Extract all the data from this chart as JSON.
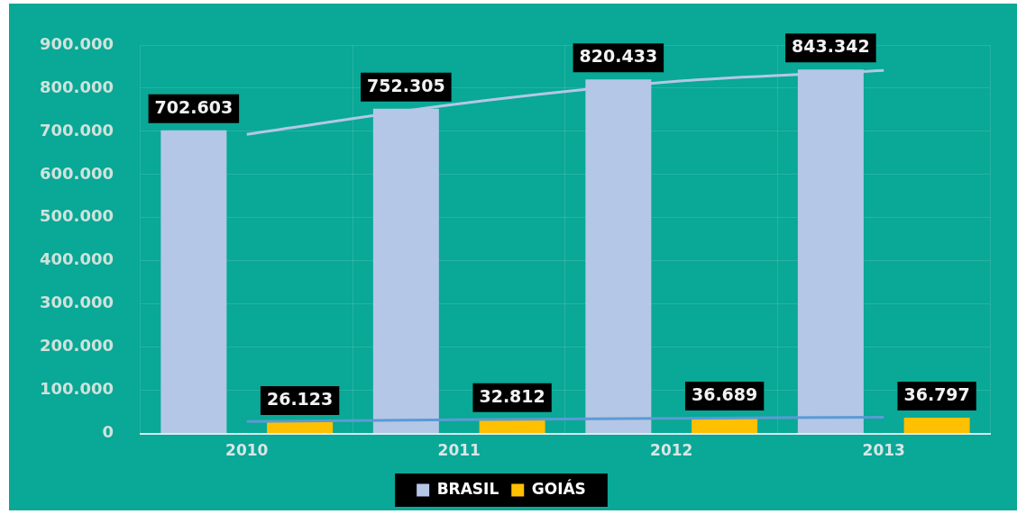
{
  "chart_data": {
    "type": "bar",
    "categories": [
      "2010",
      "2011",
      "2012",
      "2013"
    ],
    "series": [
      {
        "name": "BRASIL",
        "color": "#b4c7e7",
        "values": [
          702603,
          752305,
          820433,
          843342
        ],
        "value_labels": [
          "702.603",
          "752.305",
          "820.433",
          "843.342"
        ]
      },
      {
        "name": "GOIÁS",
        "color": "#ffc000",
        "values": [
          26123,
          32812,
          36689,
          36797
        ],
        "value_labels": [
          "26.123",
          "32.812",
          "36.689",
          "36.797"
        ]
      },
      {
        "type": "line",
        "color": "#b4c7e7",
        "values": [
          693000,
          764000,
          815000,
          841000
        ]
      },
      {
        "type": "line",
        "color": "#5b9bd5",
        "values": [
          28000,
          32000,
          35000,
          38000
        ]
      }
    ],
    "ylim": [
      0,
      900000
    ],
    "yticks": [
      {
        "value": 0,
        "label": "0"
      },
      {
        "value": 100000,
        "label": "100.000"
      },
      {
        "value": 200000,
        "label": "200.000"
      },
      {
        "value": 300000,
        "label": "300.000"
      },
      {
        "value": 400000,
        "label": "400.000"
      },
      {
        "value": 500000,
        "label": "500.000"
      },
      {
        "value": 600000,
        "label": "600.000"
      },
      {
        "value": 700000,
        "label": "700.000"
      },
      {
        "value": 800000,
        "label": "800.000"
      },
      {
        "value": 900000,
        "label": "900.000"
      }
    ],
    "grid": true,
    "legend": "bottom"
  }
}
